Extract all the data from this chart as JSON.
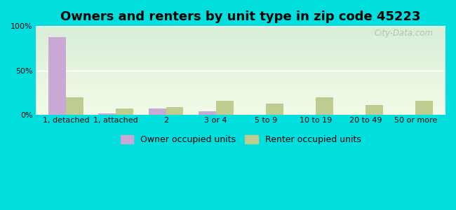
{
  "title": "Owners and renters by unit type in zip code 45223",
  "categories": [
    "1, detached",
    "1, attached",
    "2",
    "3 or 4",
    "5 to 9",
    "10 to 19",
    "20 to 49",
    "50 or more"
  ],
  "owner_values": [
    88,
    2,
    7,
    4,
    0,
    0.5,
    0.5,
    0
  ],
  "renter_values": [
    20,
    7,
    9,
    16,
    13,
    20,
    11,
    16
  ],
  "owner_color": "#c9a8d4",
  "renter_color": "#bfcc8f",
  "background_outer": "#00dede",
  "ylim": [
    0,
    100
  ],
  "yticks": [
    0,
    50,
    100
  ],
  "ytick_labels": [
    "0%",
    "50%",
    "100%"
  ],
  "bar_width": 0.35,
  "title_fontsize": 13,
  "legend_owner": "Owner occupied units",
  "legend_renter": "Renter occupied units",
  "watermark": "City-Data.com"
}
